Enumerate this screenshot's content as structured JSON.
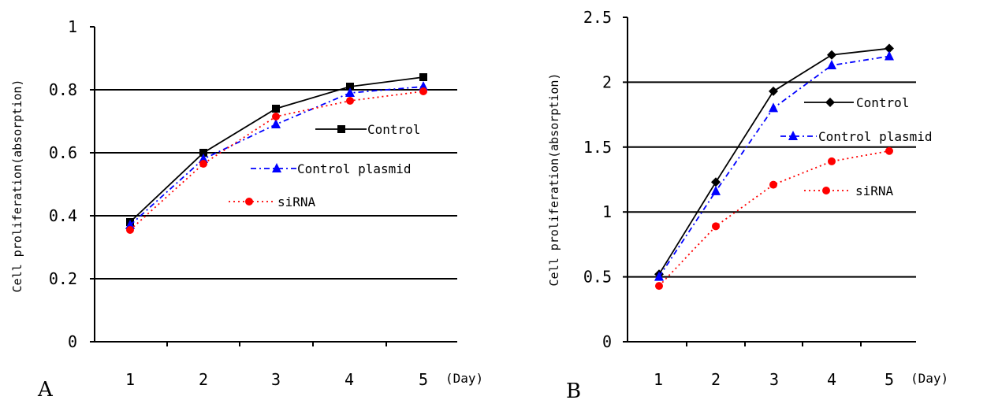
{
  "chart_data": [
    {
      "type": "line",
      "panel_label": "A",
      "ylabel": "Cell proliferation(absorption)",
      "x_unit": "(Day)",
      "categories": [
        "1",
        "2",
        "3",
        "4",
        "5"
      ],
      "ylim": [
        0,
        1
      ],
      "yticks": [
        "0",
        "0.2",
        "0.4",
        "0.6",
        "0.8",
        "1"
      ],
      "grid": true,
      "legend": "right",
      "series": [
        {
          "name": "Control",
          "values": [
            0.38,
            0.6,
            0.74,
            0.81,
            0.84
          ],
          "color": "#000000",
          "marker": "square",
          "dash": "solid"
        },
        {
          "name": "Control plasmid",
          "values": [
            0.37,
            0.58,
            0.69,
            0.79,
            0.81
          ],
          "color": "#0000ff",
          "marker": "triangle",
          "dash": "dashdot"
        },
        {
          "name": "siRNA",
          "values": [
            0.355,
            0.565,
            0.715,
            0.765,
            0.795
          ],
          "color": "#ff0000",
          "marker": "circle",
          "dash": "dotted"
        }
      ]
    },
    {
      "type": "line",
      "panel_label": "B",
      "ylabel": "Cell proliferation(absorption)",
      "x_unit": "(Day)",
      "categories": [
        "1",
        "2",
        "3",
        "4",
        "5"
      ],
      "ylim": [
        0,
        2.5
      ],
      "yticks": [
        "0",
        "0.5",
        "1",
        "1.5",
        "2",
        "2.5"
      ],
      "grid": true,
      "legend": "right",
      "series": [
        {
          "name": "Control",
          "values": [
            0.52,
            1.23,
            1.93,
            2.21,
            2.26
          ],
          "color": "#000000",
          "marker": "diamond",
          "dash": "solid"
        },
        {
          "name": "Control plasmid",
          "values": [
            0.5,
            1.16,
            1.8,
            2.13,
            2.2
          ],
          "color": "#0000ff",
          "marker": "triangle",
          "dash": "dashdot"
        },
        {
          "name": "siRNA",
          "values": [
            0.43,
            0.89,
            1.21,
            1.39,
            1.47
          ],
          "color": "#ff0000",
          "marker": "circle",
          "dash": "dotted"
        }
      ]
    }
  ]
}
